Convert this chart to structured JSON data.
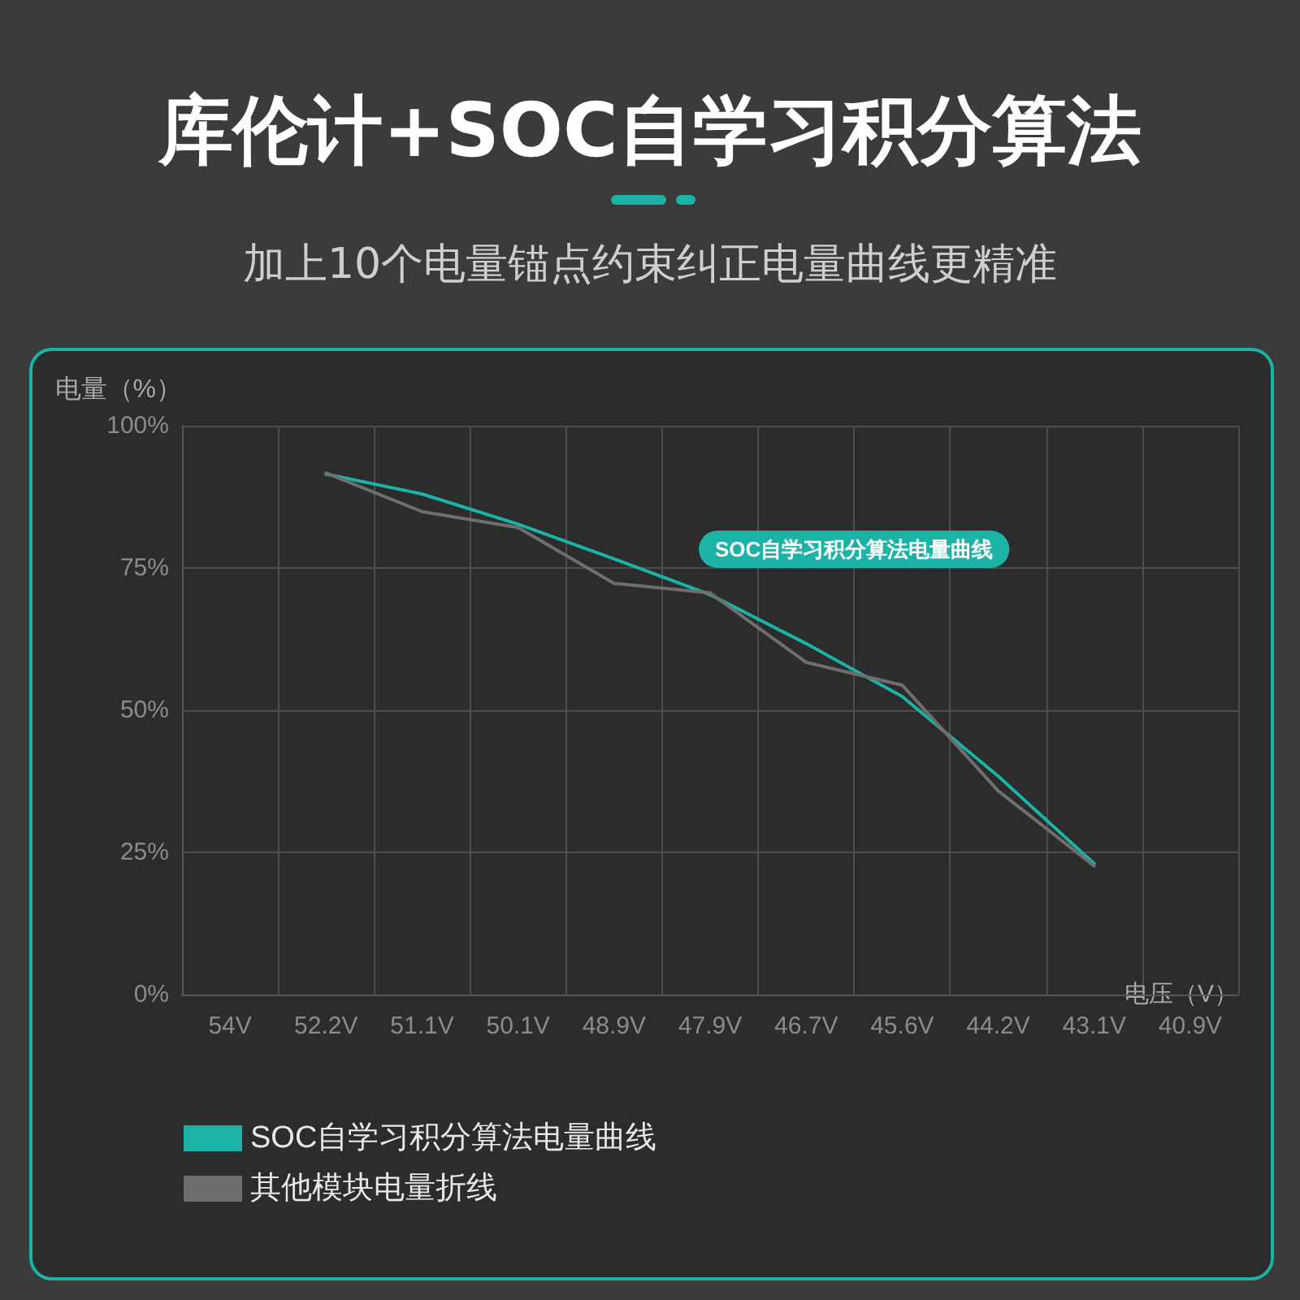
{
  "chart_data": {
    "type": "line",
    "title": "库伦计+SOC自学习积分算法",
    "subtitle": "加上10个电量锚点约束纠正电量曲线更精准",
    "xlabel": "电压（V）",
    "ylabel": "电量（%）",
    "categories": [
      "54V",
      "52.2V",
      "51.1V",
      "50.1V",
      "48.9V",
      "47.9V",
      "46.7V",
      "45.6V",
      "44.2V",
      "43.1V",
      "40.9V"
    ],
    "series": [
      {
        "name": "SOC自学习积分算法电量曲线",
        "color": "#1ab3a6",
        "values": [
          null,
          91.5,
          88,
          82.7,
          76.6,
          70.3,
          61.7,
          52.4,
          38.4,
          23,
          null
        ]
      },
      {
        "name": "其他模块电量折线",
        "color": "#6e6e6e",
        "values": [
          null,
          91.7,
          84.9,
          82.1,
          72.3,
          70.6,
          58.4,
          54.4,
          35.8,
          22.6,
          null
        ]
      }
    ],
    "annotations": [
      {
        "text": "SOC自学习积分算法电量曲线",
        "x": "47.9V",
        "y": 72
      }
    ],
    "ylim": [
      0,
      100
    ],
    "yticks": [
      {
        "value": 0,
        "label": "0%"
      },
      {
        "value": 25,
        "label": "25%"
      },
      {
        "value": 50,
        "label": "50%"
      },
      {
        "value": 75,
        "label": "75%"
      },
      {
        "value": 100,
        "label": "100%"
      }
    ],
    "grid": true,
    "legend": "bottom left",
    "marker": "none",
    "line_style": "solid"
  }
}
